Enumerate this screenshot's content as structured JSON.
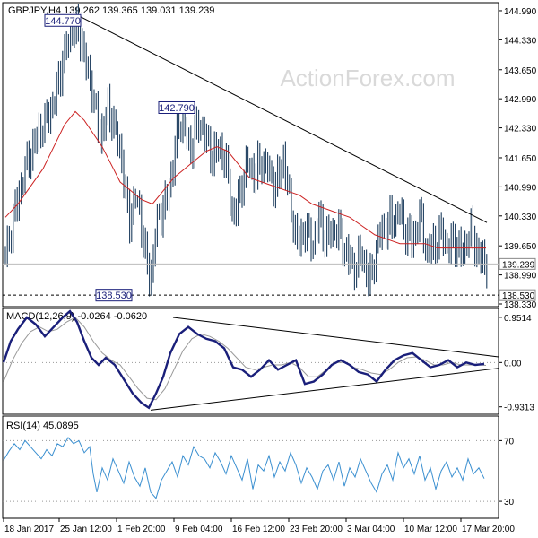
{
  "chart_data": [
    {
      "type": "bar",
      "title": "GBPJPY,H4",
      "ohlc_readout": [
        "139.262",
        "139.365",
        "139.031",
        "139.239"
      ],
      "watermark": "ActionForex.com",
      "ylim": [
        138.33,
        145.03
      ],
      "yticks": [
        144.99,
        144.33,
        143.65,
        142.99,
        142.33,
        141.65,
        140.99,
        140.33,
        139.65,
        138.99,
        138.33
      ],
      "ytick_labels": [
        "144.990",
        "144.330",
        "143.650",
        "142.990",
        "142.330",
        "141.650",
        "140.990",
        "140.330",
        "139.650",
        "138.990",
        "138.330"
      ],
      "last_price": 139.239,
      "last_price_label": "139.239",
      "support": 138.53,
      "support_label": "138.530",
      "annotations": [
        {
          "text": "144.770",
          "t": 70,
          "y": 144.77
        },
        {
          "text": "142.790",
          "t": 197,
          "y": 142.79
        },
        {
          "text": "138.530",
          "t": 127,
          "y": 138.53
        }
      ],
      "trendline": {
        "t": [
          88,
          543
        ],
        "y": [
          144.87,
          140.18
        ]
      },
      "close_path": {
        "t": [
          6,
          18,
          30,
          42,
          52,
          60,
          70,
          80,
          88,
          96,
          104,
          112,
          120,
          128,
          136,
          144,
          152,
          160,
          168,
          174,
          182,
          190,
          198,
          206,
          212,
          220,
          228,
          236,
          244,
          252,
          260,
          268,
          276,
          284,
          292,
          300,
          308,
          316,
          324,
          332,
          340,
          348,
          356,
          364,
          372,
          380,
          388,
          396,
          404,
          412,
          420,
          428,
          436,
          444,
          452,
          460,
          468,
          476,
          484,
          492,
          500,
          508,
          516,
          524,
          532,
          540
        ],
        "y": [
          139.4,
          140.6,
          141.5,
          142.2,
          142.5,
          142.9,
          143.9,
          144.5,
          144.6,
          143.8,
          143.0,
          142.1,
          142.8,
          142.3,
          141.6,
          140.2,
          140.8,
          139.8,
          138.8,
          140.1,
          140.5,
          141.1,
          142.3,
          142.4,
          141.8,
          142.4,
          142.2,
          141.7,
          141.9,
          141.5,
          140.3,
          140.9,
          141.5,
          141.3,
          141.6,
          141.3,
          141.0,
          141.7,
          140.5,
          139.7,
          140.1,
          139.6,
          140.3,
          139.8,
          140.0,
          139.9,
          139.4,
          139.1,
          139.5,
          138.8,
          139.6,
          140.1,
          140.2,
          140.4,
          140.0,
          139.8,
          140.3,
          139.5,
          139.7,
          139.9,
          139.6,
          139.8,
          139.4,
          140.0,
          139.6,
          139.2
        ]
      },
      "ma_path": {
        "t": [
          6,
          20,
          34,
          48,
          60,
          72,
          84,
          94,
          104,
          114,
          124,
          134,
          146,
          158,
          170,
          182,
          194,
          206,
          218,
          230,
          242,
          254,
          266,
          278,
          292,
          306,
          320,
          334,
          348,
          362,
          376,
          390,
          404,
          418,
          432,
          446,
          460,
          474,
          488,
          502,
          516,
          530,
          542
        ],
        "y": [
          140.3,
          140.6,
          141.0,
          141.4,
          141.9,
          142.4,
          142.7,
          142.5,
          142.2,
          141.9,
          141.5,
          141.1,
          140.9,
          140.7,
          140.6,
          140.9,
          141.2,
          141.4,
          141.6,
          141.8,
          141.9,
          141.8,
          141.5,
          141.2,
          141.1,
          141.0,
          140.9,
          140.8,
          140.6,
          140.5,
          140.4,
          140.3,
          140.1,
          139.9,
          139.8,
          139.7,
          139.7,
          139.7,
          139.6,
          139.6,
          139.6,
          139.6,
          139.6
        ]
      }
    },
    {
      "type": "line",
      "title": "MACD(12,26,9) -0.0264 -0.0620",
      "ylim": [
        -1.05,
        1.1
      ],
      "yticks": [
        0.9514,
        0.0,
        -0.9313
      ],
      "ytick_labels": [
        "0.9514",
        "0.00",
        "-0.9313"
      ],
      "macd_path": {
        "t": [
          4,
          12,
          20,
          30,
          40,
          50,
          60,
          70,
          78,
          86,
          94,
          102,
          110,
          118,
          128,
          138,
          148,
          158,
          166,
          174,
          182,
          190,
          200,
          210,
          220,
          230,
          240,
          250,
          260,
          270,
          280,
          290,
          300,
          310,
          320,
          330,
          340,
          350,
          360,
          370,
          380,
          390,
          400,
          410,
          420,
          430,
          440,
          450,
          460,
          470,
          480,
          490,
          500,
          510,
          520,
          530,
          540
        ],
        "y": [
          0.0,
          0.45,
          0.7,
          0.95,
          0.8,
          0.55,
          0.75,
          0.95,
          1.08,
          0.85,
          0.45,
          0.1,
          -0.05,
          0.1,
          -0.05,
          -0.35,
          -0.65,
          -0.85,
          -0.95,
          -0.65,
          -0.3,
          0.2,
          0.6,
          0.75,
          0.6,
          0.5,
          0.45,
          0.3,
          -0.1,
          -0.15,
          -0.3,
          -0.15,
          0.05,
          -0.15,
          -0.05,
          0.05,
          -0.45,
          -0.4,
          -0.25,
          -0.05,
          0.05,
          -0.05,
          -0.2,
          -0.25,
          -0.4,
          -0.15,
          0.05,
          0.15,
          0.2,
          0.05,
          -0.1,
          -0.05,
          0.05,
          -0.1,
          0.0,
          -0.05,
          -0.03
        ]
      },
      "signal_path": {
        "t": [
          4,
          14,
          24,
          34,
          44,
          54,
          64,
          74,
          84,
          94,
          104,
          114,
          124,
          134,
          144,
          154,
          164,
          174,
          184,
          194,
          204,
          214,
          224,
          234,
          244,
          254,
          264,
          274,
          284,
          294,
          304,
          314,
          324,
          334,
          344,
          354,
          364,
          374,
          384,
          394,
          404,
          414,
          424,
          434,
          444,
          454,
          464,
          474,
          484,
          494,
          504,
          514,
          524,
          534,
          542
        ],
        "y": [
          -0.4,
          0.05,
          0.4,
          0.65,
          0.75,
          0.65,
          0.7,
          0.85,
          0.95,
          0.75,
          0.45,
          0.2,
          0.05,
          -0.05,
          -0.3,
          -0.55,
          -0.75,
          -0.78,
          -0.55,
          -0.15,
          0.25,
          0.5,
          0.6,
          0.55,
          0.45,
          0.3,
          0.1,
          -0.1,
          -0.15,
          -0.1,
          -0.05,
          -0.05,
          0.0,
          -0.1,
          -0.3,
          -0.3,
          -0.15,
          0.0,
          0.0,
          -0.1,
          -0.15,
          -0.22,
          -0.25,
          -0.15,
          0.0,
          0.1,
          0.12,
          0.05,
          -0.05,
          -0.05,
          0.0,
          -0.05,
          -0.05,
          -0.05,
          -0.06
        ]
      },
      "upper_trendline": {
        "t": [
          193,
          556
        ],
        "y": [
          0.95,
          0.12
        ]
      },
      "lower_trendline": {
        "t": [
          168,
          556
        ],
        "y": [
          -1.0,
          -0.12
        ]
      }
    },
    {
      "type": "line",
      "title": "RSI(14) 45.0895",
      "ylim": [
        20,
        85
      ],
      "yticks": [
        70,
        30
      ],
      "ytick_labels": [
        "70",
        "30"
      ],
      "rsi_path": {
        "t": [
          4,
          10,
          16,
          22,
          28,
          34,
          40,
          46,
          52,
          58,
          64,
          70,
          76,
          82,
          88,
          94,
          100,
          104,
          108,
          114,
          120,
          126,
          132,
          138,
          144,
          150,
          156,
          162,
          168,
          174,
          180,
          186,
          192,
          198,
          204,
          210,
          216,
          222,
          228,
          234,
          240,
          246,
          252,
          258,
          264,
          270,
          276,
          282,
          288,
          294,
          300,
          306,
          312,
          318,
          324,
          330,
          336,
          342,
          348,
          354,
          360,
          366,
          372,
          378,
          384,
          390,
          396,
          402,
          408,
          414,
          420,
          426,
          432,
          438,
          444,
          450,
          456,
          462,
          468,
          474,
          480,
          486,
          492,
          498,
          504,
          510,
          516,
          522,
          528,
          534,
          540
        ],
        "y": [
          57,
          63,
          68,
          64,
          70,
          66,
          62,
          58,
          64,
          60,
          68,
          66,
          72,
          68,
          70,
          62,
          66,
          48,
          36,
          52,
          44,
          58,
          50,
          42,
          56,
          46,
          40,
          52,
          36,
          32,
          44,
          50,
          56,
          46,
          60,
          54,
          66,
          60,
          58,
          52,
          62,
          56,
          48,
          60,
          52,
          44,
          58,
          38,
          54,
          50,
          60,
          46,
          56,
          50,
          62,
          54,
          42,
          52,
          46,
          38,
          50,
          54,
          44,
          56,
          40,
          52,
          46,
          58,
          50,
          42,
          36,
          48,
          54,
          44,
          62,
          52,
          58,
          48,
          60,
          44,
          52,
          38,
          50,
          56,
          46,
          52,
          44,
          58,
          48,
          52,
          45
        ]
      }
    }
  ],
  "x_labels": [
    {
      "text": "18 Jan 2017",
      "t": 4
    },
    {
      "text": "25 Jan 12:00",
      "t": 66
    },
    {
      "text": "1 Feb 20:00",
      "t": 130
    },
    {
      "text": "9 Feb 04:00",
      "t": 194
    },
    {
      "text": "16 Feb 12:00",
      "t": 258
    },
    {
      "text": "23 Feb 20:00",
      "t": 322
    },
    {
      "text": "3 Mar 04:00",
      "t": 386
    },
    {
      "text": "10 Mar 12:00",
      "t": 450
    },
    {
      "text": "17 Mar 20:00",
      "t": 514
    }
  ],
  "colors": {
    "price": "#1f3f5f",
    "ma": "#cc2222",
    "macd": "#1a1f7a",
    "signal": "#999999",
    "rsi": "#3a8fd0",
    "trend": "#000000",
    "label_border": "#1a1f7a",
    "watermark": "#d9d9d9"
  }
}
